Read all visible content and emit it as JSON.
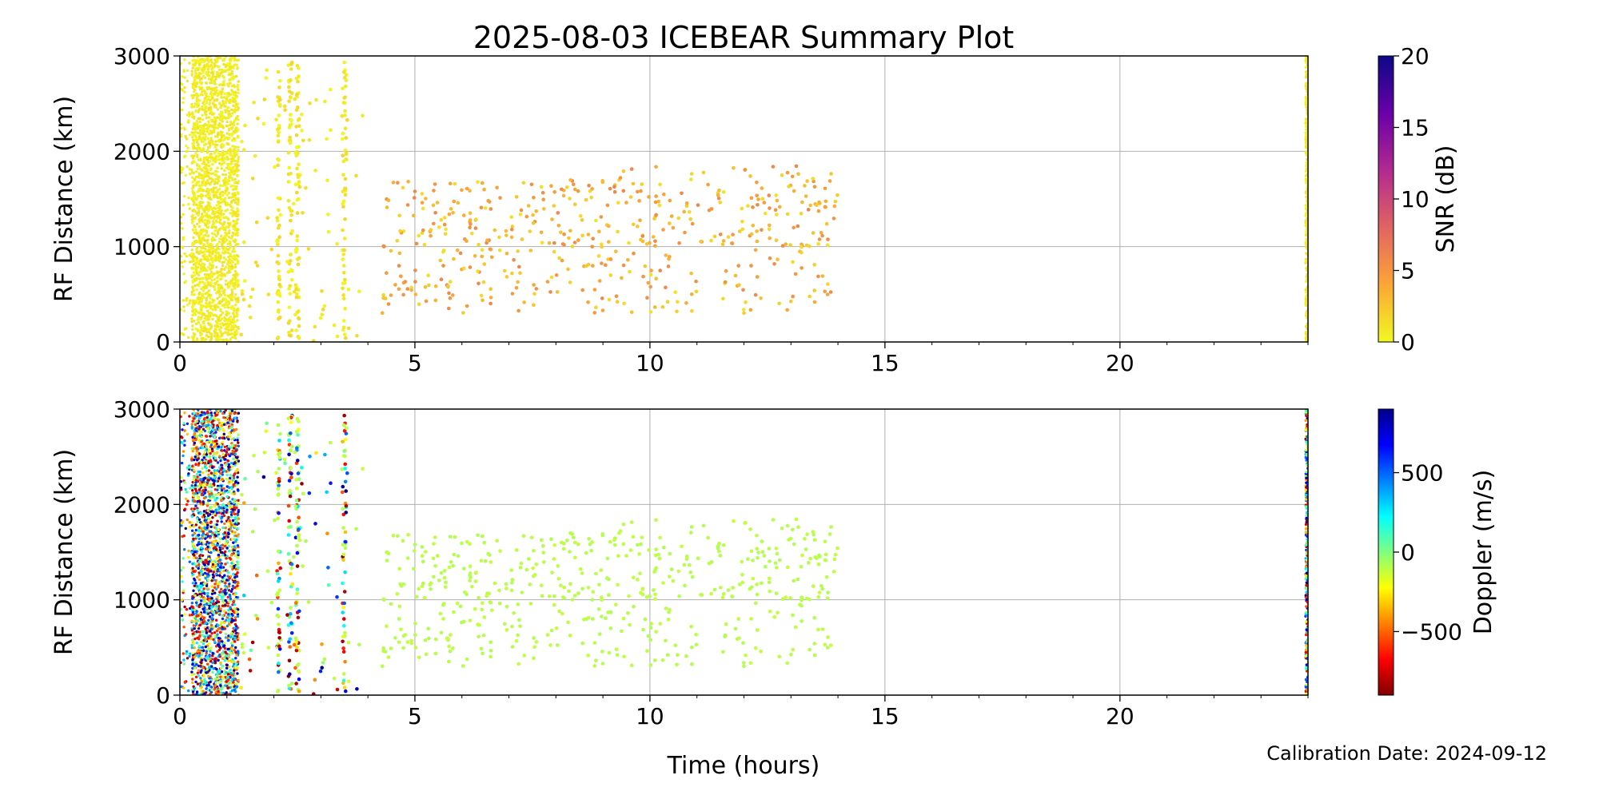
{
  "title": "2025-08-03 ICEBEAR Summary Plot",
  "footer": "Calibration Date: 2024-09-12",
  "chart_data": [
    {
      "type": "scatter",
      "panel": "top",
      "color_variable": "SNR",
      "xlabel": "",
      "ylabel": "RF Distance (km)",
      "xlim": [
        0,
        24
      ],
      "ylim": [
        0,
        3000
      ],
      "xticks": [
        0,
        5,
        10,
        15,
        20
      ],
      "yticks": [
        0,
        1000,
        2000,
        3000
      ],
      "grid": true,
      "colorbar": {
        "label": "SNR (dB)",
        "min": 0,
        "max": 20,
        "ticks": [
          0,
          5,
          10,
          15,
          20
        ],
        "colormap": "plasma_r",
        "colors": [
          "#f0f921",
          "#fca636",
          "#e16462",
          "#b12a90",
          "#6a00a8",
          "#0d0887"
        ]
      },
      "dense_bands_hours": [
        [
          0.25,
          1.25
        ],
        [
          23.95,
          24.0
        ]
      ],
      "sparse_columns": [
        {
          "x": 2.1,
          "y_range": [
            0,
            2900
          ]
        },
        {
          "x": 2.35,
          "y_range": [
            0,
            2950
          ]
        },
        {
          "x": 2.5,
          "y_range": [
            0,
            2900
          ]
        },
        {
          "x": 3.5,
          "y_range": [
            0,
            3000
          ]
        }
      ],
      "scatter_region": {
        "x_range": [
          1.2,
          14.0
        ],
        "y_range": [
          250,
          1900
        ],
        "typical_snr": [
          1,
          6
        ]
      }
    },
    {
      "type": "scatter",
      "panel": "bottom",
      "color_variable": "Doppler",
      "xlabel": "Time (hours)",
      "ylabel": "RF Distance (km)",
      "xlim": [
        0,
        24
      ],
      "ylim": [
        0,
        3000
      ],
      "xticks": [
        0,
        5,
        10,
        15,
        20
      ],
      "yticks": [
        0,
        1000,
        2000,
        3000
      ],
      "grid": true,
      "colorbar": {
        "label": "Doppler (m/s)",
        "min": -900,
        "max": 900,
        "ticks": [
          -500,
          0,
          500
        ],
        "tick_labels": [
          "−500",
          "0",
          "500"
        ],
        "colormap": "jet_r",
        "colors": [
          "#800000",
          "#ff0000",
          "#ff8000",
          "#ffff00",
          "#80ff80",
          "#00ffff",
          "#0080ff",
          "#0000ff",
          "#00008b"
        ]
      },
      "dense_bands_hours": [
        [
          0.25,
          1.25
        ],
        [
          23.95,
          24.0
        ]
      ],
      "sparse_columns": [
        {
          "x": 2.1,
          "y_range": [
            0,
            2900
          ]
        },
        {
          "x": 2.35,
          "y_range": [
            0,
            2950
          ]
        },
        {
          "x": 2.5,
          "y_range": [
            0,
            2900
          ]
        },
        {
          "x": 3.5,
          "y_range": [
            0,
            3000
          ]
        }
      ],
      "scatter_region": {
        "x_range": [
          1.2,
          14.0
        ],
        "y_range": [
          250,
          1900
        ],
        "typical_doppler": -100
      }
    }
  ]
}
